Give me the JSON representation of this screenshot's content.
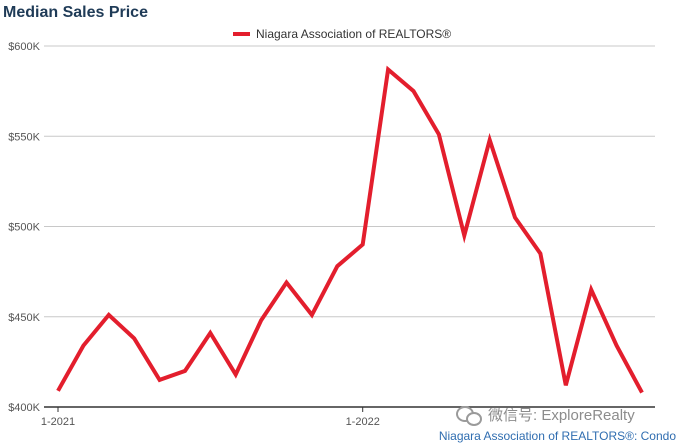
{
  "title": "Median Sales Price",
  "source": "Niagara Association of REALTORS®: Condo",
  "watermark": "微信号: ExploreRealty",
  "watermark_icon": "wechat-icon",
  "chart_data": {
    "type": "line",
    "title": "Median Sales Price",
    "xlabel": "",
    "ylabel": "",
    "ylim": [
      400000,
      600000
    ],
    "y_ticks": [
      400000,
      450000,
      500000,
      550000,
      600000
    ],
    "y_tick_labels": [
      "$400K",
      "$450K",
      "$500K",
      "$550K",
      "$600K"
    ],
    "x_tick_labels": [
      {
        "index": 0,
        "label": "1-2021"
      },
      {
        "index": 12,
        "label": "1-2022"
      }
    ],
    "grid": true,
    "legend": "top-center",
    "series": [
      {
        "name": "Niagara Association of REALTORS®",
        "color": "#e31e2d",
        "values": [
          409000,
          434000,
          451000,
          438000,
          415000,
          420000,
          441000,
          418000,
          448000,
          469000,
          451000,
          478000,
          490000,
          587000,
          575000,
          551000,
          495000,
          548000,
          505000,
          485000,
          412000,
          465000,
          434000,
          408000
        ]
      }
    ]
  }
}
